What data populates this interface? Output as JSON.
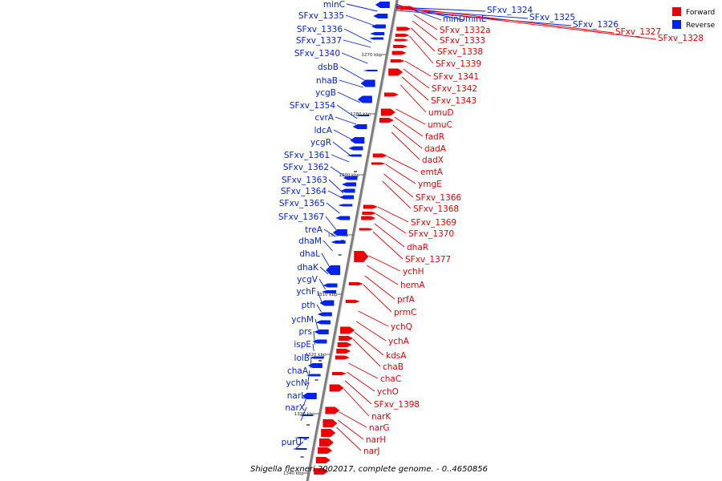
{
  "caption": "Shigella flexneri 2002017, complete genome. - 0..4650856",
  "legend": [
    {
      "label": "Forward",
      "color": "#ee0000"
    },
    {
      "label": "Reverse",
      "color": "#0022ee"
    }
  ],
  "colors": {
    "forward": "#ee0000",
    "reverse": "#0022ee",
    "axis": "#8a8a8a"
  },
  "kbp_marks": [
    "1270 kbp",
    "1280 kbp",
    "1290 kbp",
    "1300 kbp",
    "1310 kbp",
    "1320 kbp",
    "1330 kbp",
    "1340 kbp"
  ],
  "reverse_genes": [
    "minC",
    "SFxv_1335",
    "SFxv_1336",
    "SFxv_1337",
    "SFxv_1340",
    "dsbB",
    "nhaB",
    "ycgB",
    "SFxv_1354",
    "cvrA",
    "ldcA",
    "ycgR",
    "SFxv_1361",
    "SFxv_1362",
    "SFxv_1363",
    "SFxv_1364",
    "SFxv_1365",
    "SFxv_1367",
    "treA",
    "dhaM",
    "dhaL",
    "dhaK",
    "ycgV",
    "ychF",
    "pth",
    "ychM",
    "prs",
    "ispE",
    "lolB",
    "chaA",
    "ychN",
    "narL",
    "narX",
    "purU"
  ],
  "reverse_top_genes": [
    "minD",
    "minE",
    "SFxv_1324",
    "SFxv_1325",
    "SFxv_1326"
  ],
  "forward_top_genes": [
    "SFxv_1327",
    "SFxv_1328"
  ],
  "forward_genes": [
    "SFxv_1332a",
    "SFxv_1333",
    "SFxv_1338",
    "SFxv_1339",
    "SFxv_1341",
    "SFxv_1342",
    "SFxv_1343",
    "umuD",
    "umuC",
    "fadR",
    "dadA",
    "dadX",
    "emtA",
    "ymgE",
    "SFxv_1366",
    "SFxv_1368",
    "SFxv_1369",
    "SFxv_1370",
    "dhaR",
    "SFxv_1377",
    "ychH",
    "hemA",
    "prfA",
    "prmC",
    "ychQ",
    "ychA",
    "kdsA",
    "chaB",
    "chaC",
    "ychO",
    "SFxv_1398",
    "narK",
    "narG",
    "narH",
    "narJ"
  ]
}
